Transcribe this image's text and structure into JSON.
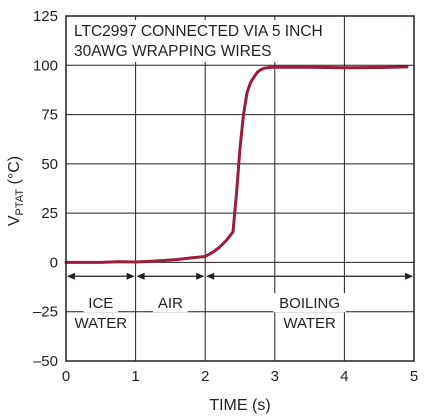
{
  "chart_data": {
    "type": "line",
    "title_lines": [
      "LTC2997 CONNECTED VIA 5 INCH",
      "30AWG WRAPPING WIRES"
    ],
    "xlabel": "TIME (s)",
    "ylabel": {
      "main": "V",
      "subscript": "PTAT",
      "unit": " (°C)"
    },
    "xlim": [
      0,
      5
    ],
    "ylim": [
      -50,
      125
    ],
    "x_ticks": [
      "0",
      "1",
      "2",
      "3",
      "4",
      "5"
    ],
    "y_ticks": [
      "–50",
      "–25",
      "0",
      "25",
      "50",
      "75",
      "100",
      "125"
    ],
    "grid": true,
    "line_color": "#9c1c3c",
    "regions": [
      {
        "label_lines": [
          "ICE",
          "WATER"
        ],
        "x_start": 0,
        "x_end": 1
      },
      {
        "label_lines": [
          "AIR"
        ],
        "x_start": 1,
        "x_end": 2
      },
      {
        "label_lines": [
          "BOILING",
          "WATER"
        ],
        "x_start": 2,
        "x_end": 5
      }
    ],
    "series": [
      {
        "x": [
          0,
          0.25,
          0.5,
          0.75,
          1.0,
          1.2,
          1.4,
          1.6,
          1.8,
          2.0,
          2.1,
          2.2,
          2.3,
          2.4,
          2.45,
          2.5,
          2.55,
          2.6,
          2.65,
          2.7,
          2.75,
          2.8,
          2.85,
          2.9,
          2.95,
          3.0,
          3.5,
          4.0,
          4.5,
          4.9
        ],
        "y": [
          0,
          0,
          0,
          0.3,
          0.2,
          0.5,
          1.0,
          1.5,
          2.3,
          3.0,
          5.0,
          7.5,
          11.0,
          15.5,
          35.0,
          58.0,
          75.0,
          86.0,
          91.0,
          94.0,
          96.5,
          97.8,
          98.5,
          98.8,
          99.0,
          99.0,
          99.0,
          98.8,
          98.9,
          99.2
        ]
      }
    ]
  }
}
